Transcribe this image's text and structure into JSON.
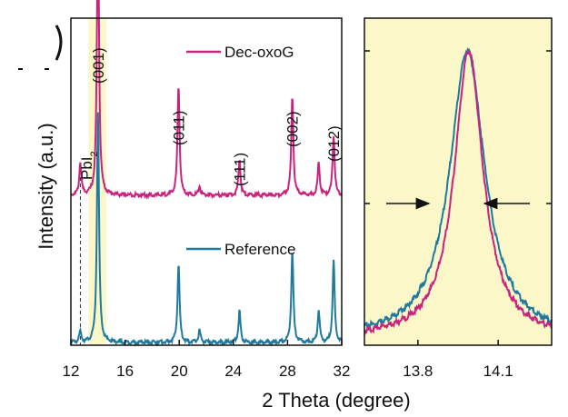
{
  "chart_data": [
    {
      "type": "line",
      "panel": "left",
      "xlabel": "2 Theta (degree)",
      "ylabel": "Intensity (a.u.)",
      "xlim": [
        12,
        32
      ],
      "xticks": [
        "12",
        "16",
        "20",
        "24",
        "28",
        "32"
      ],
      "highlight_band": [
        13.3,
        14.6
      ],
      "highlight_color": "#fbf7c9",
      "reference_line_x": 12.7,
      "reference_line_label": "PbI2",
      "legend": [
        {
          "name": "Dec-oxoG",
          "color": "#c8237f"
        },
        {
          "name": "Reference",
          "color": "#1f7a9e"
        }
      ],
      "peak_labels": [
        {
          "label": "(001)",
          "x": 14.0
        },
        {
          "label": "(011)",
          "x": 19.95
        },
        {
          "label": "(111)",
          "x": 24.45
        },
        {
          "label": "(002)",
          "x": 28.35
        },
        {
          "label": "(012)",
          "x": 31.4
        }
      ],
      "series": [
        {
          "name": "Dec-oxoG",
          "color": "#c8237f",
          "baseline": 0.98,
          "peaks": [
            [
              12.7,
              0.9
            ],
            [
              14.0,
              8.1
            ],
            [
              19.95,
              3.1
            ],
            [
              21.5,
              0.25
            ],
            [
              24.45,
              1.0
            ],
            [
              28.35,
              2.8
            ],
            [
              30.3,
              0.9
            ],
            [
              31.4,
              1.7
            ]
          ]
        },
        {
          "name": "Reference",
          "color": "#1f7a9e",
          "baseline": 0.0,
          "peaks": [
            [
              12.7,
              0.3
            ],
            [
              14.0,
              6.5
            ],
            [
              19.95,
              2.2
            ],
            [
              21.5,
              0.35
            ],
            [
              24.45,
              0.9
            ],
            [
              28.35,
              2.6
            ],
            [
              30.3,
              0.9
            ],
            [
              31.4,
              2.3
            ]
          ]
        }
      ]
    },
    {
      "type": "line",
      "panel": "right",
      "xlim": [
        13.6,
        14.3
      ],
      "xticks": [
        "13.8",
        "14.1"
      ],
      "background": "#fbf7c9",
      "arrows": "both pointing inward at half maximum",
      "series": [
        {
          "name": "Dec-oxoG",
          "color": "#c8237f",
          "center": 13.99,
          "fwhm": 0.13
        },
        {
          "name": "Reference",
          "color": "#1f7a9e",
          "center": 13.985,
          "fwhm": 0.16
        }
      ]
    }
  ]
}
